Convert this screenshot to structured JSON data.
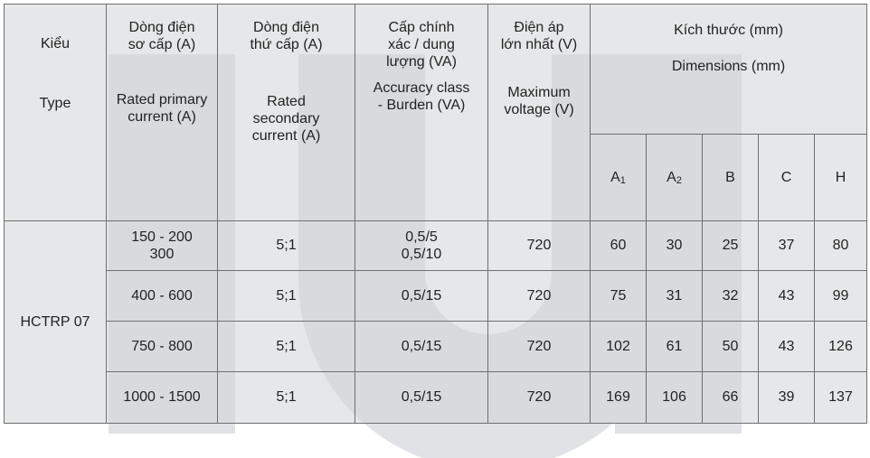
{
  "headers": {
    "type": {
      "vn": "Kiểu",
      "en": "Type"
    },
    "primary": {
      "vn": [
        "Dòng điện",
        "sơ cấp (A)"
      ],
      "en": [
        "Rated primary",
        "current (A)"
      ]
    },
    "secondary": {
      "vn": [
        "Dòng điện",
        "thứ cấp (A)"
      ],
      "en": [
        "Rated",
        "secondary",
        "current (A)"
      ]
    },
    "accuracy": {
      "vn": [
        "Cấp chính",
        "xác / dung",
        "lượng (VA)"
      ],
      "en": [
        "Accuracy class",
        "- Burden (VA)"
      ]
    },
    "voltage": {
      "vn": [
        "Điện áp",
        "lớn nhất (V)"
      ],
      "en": [
        "Maximum",
        "voltage (V)"
      ]
    },
    "dimensions": {
      "vn": "Kích thước (mm)",
      "en": "Dimensions (mm)"
    },
    "dim_cols": [
      {
        "base": "A",
        "sub": "1"
      },
      {
        "base": "A",
        "sub": "2"
      },
      {
        "base": "B",
        "sub": ""
      },
      {
        "base": "C",
        "sub": ""
      },
      {
        "base": "H",
        "sub": ""
      }
    ]
  },
  "model": "HCTRP 07",
  "rows": [
    {
      "primary": [
        "150 - 200",
        "300"
      ],
      "secondary": "5;1",
      "accuracy": [
        "0,5/5",
        "0,5/10"
      ],
      "voltage": "720",
      "dims": [
        "60",
        "30",
        "25",
        "37",
        "80"
      ]
    },
    {
      "primary": [
        "400 - 600"
      ],
      "secondary": "5;1",
      "accuracy": [
        "0,5/15"
      ],
      "voltage": "720",
      "dims": [
        "75",
        "31",
        "32",
        "43",
        "99"
      ]
    },
    {
      "primary": [
        "750 - 800"
      ],
      "secondary": "5;1",
      "accuracy": [
        "0,5/15"
      ],
      "voltage": "720",
      "dims": [
        "102",
        "61",
        "50",
        "43",
        "126"
      ]
    },
    {
      "primary": [
        "1000 - 1500"
      ],
      "secondary": "5;1",
      "accuracy": [
        "0,5/15"
      ],
      "voltage": "720",
      "dims": [
        "169",
        "106",
        "66",
        "39",
        "137"
      ]
    }
  ]
}
